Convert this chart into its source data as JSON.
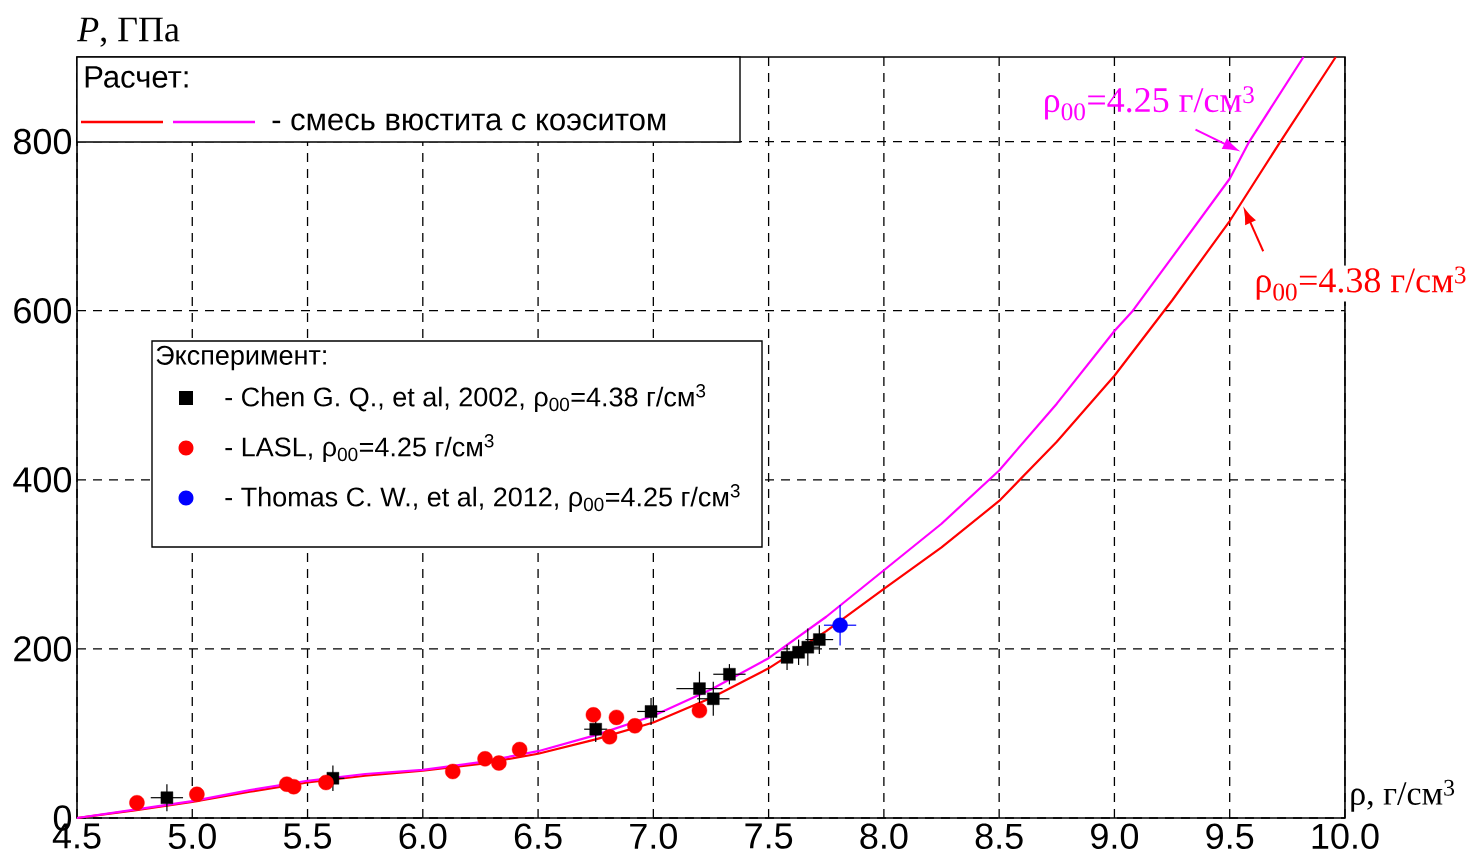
{
  "chart_data": {
    "type": "line",
    "xlabel": "ρ, г/см$^{3}$",
    "ylabel": "*P*, ГПа",
    "legend_title": "Эксперимент:",
    "xlim": [
      4.5,
      10.0
    ],
    "ylim": [
      0,
      900
    ],
    "xticks": [
      {
        "value": 4.5,
        "label": "4.5"
      },
      {
        "value": 5,
        "label": "5.0"
      },
      {
        "value": 5.5,
        "label": "5.5"
      },
      {
        "value": 6,
        "label": "6.0"
      },
      {
        "value": 6.5,
        "label": "6.5"
      },
      {
        "value": 7,
        "label": "7.0"
      },
      {
        "value": 7.5,
        "label": "7.5"
      },
      {
        "value": 8,
        "label": "8.0"
      },
      {
        "value": 8.5,
        "label": "8.5"
      },
      {
        "value": 9,
        "label": "9.0"
      },
      {
        "value": 9.5,
        "label": "9.5"
      },
      {
        "value": 10,
        "label": "10.0"
      }
    ],
    "yticks": [
      0,
      200,
      400,
      600,
      800
    ],
    "grid": true,
    "legend": "left",
    "series": [
      {
        "color": "#ff0000",
        "marker": "none",
        "x": [
          4.5,
          4.75,
          5.0,
          5.25,
          5.5,
          5.75,
          6.0,
          6.25,
          6.5,
          6.75,
          7.0,
          7.25,
          7.5,
          7.75,
          8.0,
          8.25,
          8.5,
          8.75,
          9.0,
          9.25,
          9.5,
          9.72,
          9.96
        ],
        "values": [
          0,
          9,
          19,
          31,
          42,
          50,
          56,
          64,
          76,
          93,
          113,
          142,
          177,
          221,
          271,
          320,
          375,
          445,
          523,
          612,
          706,
          800,
          900
        ]
      },
      {
        "name": "- смесь вюстита с коэситом",
        "color": "#ff00ff",
        "marker": "none",
        "x": [
          4.5,
          4.75,
          5.0,
          5.25,
          5.5,
          5.75,
          6.0,
          6.25,
          6.5,
          6.75,
          7.0,
          7.25,
          7.5,
          7.75,
          8.0,
          8.25,
          8.5,
          8.75,
          9.0,
          9.08,
          9.25,
          9.5,
          9.585,
          9.82
        ],
        "values": [
          0,
          10,
          20,
          33,
          44,
          52,
          57,
          66,
          79,
          98,
          121,
          152,
          189,
          238,
          293,
          348,
          411,
          490,
          576,
          600,
          663,
          756,
          800,
          900
        ]
      },
      {
        "name": "- Chen G. Q., et al, 2002, ρ$_{00}$=4.38 г/см$^{3}$",
        "type": "scatter",
        "color": "#000000",
        "marker": "square",
        "x": [
          4.89,
          5.61,
          6.75,
          6.99,
          7.2,
          7.26,
          7.33,
          7.58,
          7.63,
          7.67,
          7.72
        ],
        "values": [
          24,
          47,
          105,
          126,
          153,
          141,
          170,
          190,
          196,
          202,
          211
        ],
        "errors": [
          16,
          15,
          15,
          16,
          20,
          20,
          12,
          15,
          15,
          22,
          17
        ],
        "xerrors": [
          0.07,
          0.05,
          0.05,
          0.06,
          0.1,
          0.07,
          0.07,
          0.05,
          0.05,
          0.05,
          0.06
        ]
      },
      {
        "name": "- LASL, ρ$_{00}$=4.25 г/см$^{3}$",
        "type": "scatter",
        "color": "#ff0000",
        "marker": "circle",
        "x": [
          4.76,
          5.02,
          5.41,
          5.44,
          5.58,
          6.13,
          6.27,
          6.33,
          6.42,
          6.74,
          6.84,
          6.81,
          6.92,
          7.2
        ],
        "values": [
          18,
          28,
          40,
          37,
          42,
          55,
          70,
          65,
          81,
          122,
          119,
          96,
          109,
          127
        ]
      },
      {
        "name": "- Thomas C. W., et al, 2012, ρ$_{00}$=4.25 г/см$^{3}$",
        "type": "scatter",
        "color": "#0000ff",
        "marker": "circle",
        "x": [
          7.81
        ],
        "values": [
          228
        ],
        "errors": [
          24
        ],
        "xerrors": [
          0.07
        ]
      }
    ],
    "annotations": [
      "Расчет:",
      {
        "text": "ρ$_{00}$=4.25 г/см$^{3}$",
        "x": 9.56,
        "y": 787
      },
      {
        "text": "ρ$_{00}$=4.38 г/см$^{3}$",
        "x": 9.55,
        "y": 727
      }
    ]
  }
}
